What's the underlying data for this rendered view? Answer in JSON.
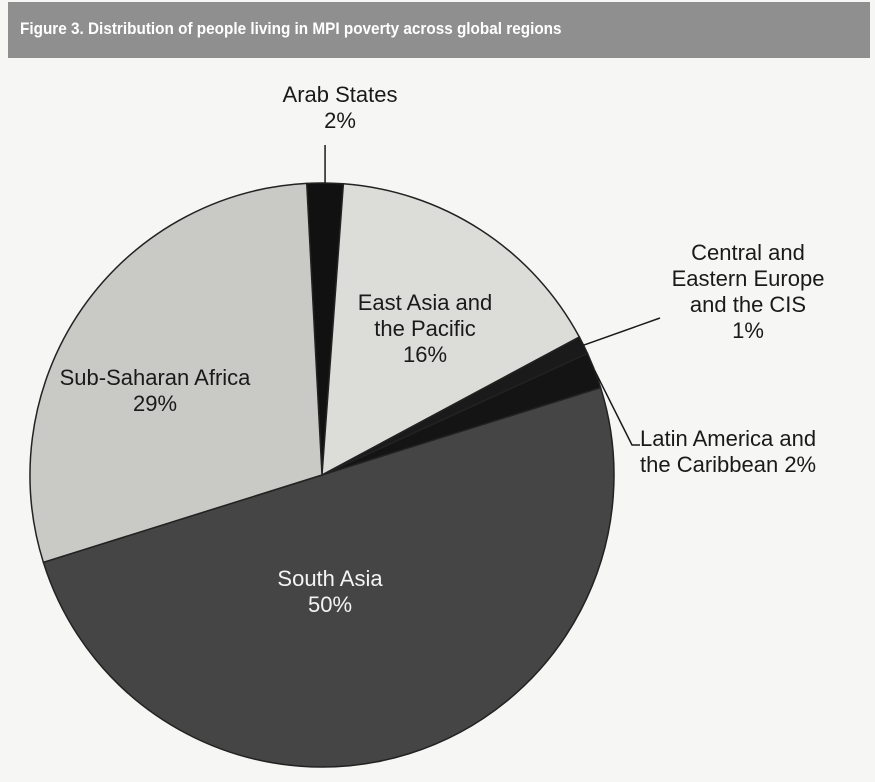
{
  "title": "Figure 3. Distribution of people living in MPI poverty across global regions",
  "chart_data": {
    "type": "pie",
    "title": "Figure 3. Distribution of people living in MPI poverty across global regions",
    "slices": [
      {
        "name": "Arab States",
        "value": 2,
        "label": "2%",
        "color": "#111111"
      },
      {
        "name": "East Asia and the Pacific",
        "value": 16,
        "label": "16%",
        "color": "#dcdcd8"
      },
      {
        "name": "Central and Eastern Europe and the CIS",
        "value": 1,
        "label": "1%",
        "color": "#1a1a1a"
      },
      {
        "name": "Latin America and the Caribbean",
        "value": 2,
        "label": "2%",
        "color": "#141414"
      },
      {
        "name": "South Asia",
        "value": 50,
        "label": "50%",
        "color": "#454545"
      },
      {
        "name": "Sub-Saharan Africa",
        "value": 29,
        "label": "29%",
        "color": "#c9c9c6"
      }
    ]
  },
  "labels": {
    "arab": {
      "line1": "Arab States",
      "line2": "2%"
    },
    "east_asia": {
      "line1": "East Asia and",
      "line2": "the Pacific",
      "line3": "16%"
    },
    "cee": {
      "line1": "Central and",
      "line2": "Eastern Europe",
      "line3": "and the CIS",
      "line4": "1%"
    },
    "latin": {
      "line1": "Latin America and",
      "line2": "the Caribbean 2%"
    },
    "south_asia": {
      "line1": "South Asia",
      "line2": "50%"
    },
    "ssa": {
      "line1": "Sub-Saharan Africa",
      "line2": "29%"
    }
  }
}
